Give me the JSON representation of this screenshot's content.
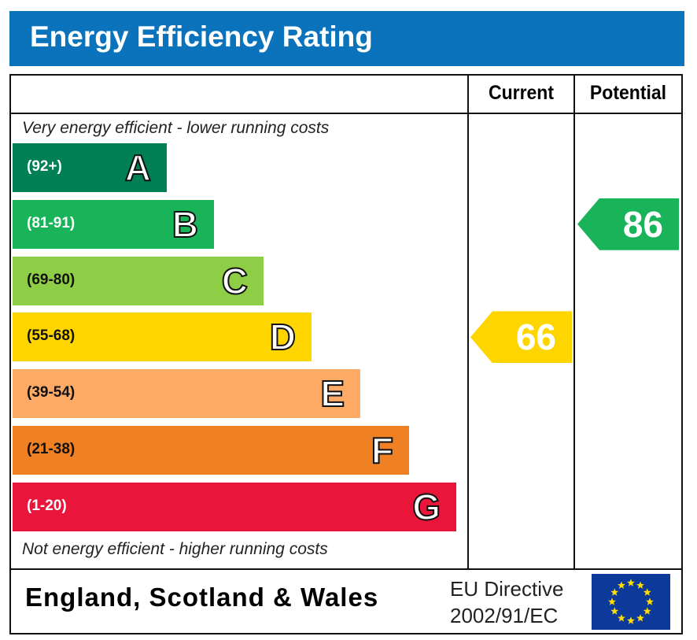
{
  "title": "Energy Efficiency Rating",
  "columns": {
    "current": "Current",
    "potential": "Potential"
  },
  "notes": {
    "top": "Very energy efficient - lower running costs",
    "bottom": "Not energy efficient - higher running costs"
  },
  "footer": {
    "region": "England, Scotland & Wales",
    "directive_line1": "EU Directive",
    "directive_line2": "2002/91/EC",
    "flag_icon": "eu-flag-icon"
  },
  "chart_data": {
    "type": "bar",
    "bands": [
      {
        "letter": "A",
        "range": "(92+)",
        "min": 92,
        "max": 100,
        "color": "#008054"
      },
      {
        "letter": "B",
        "range": "(81-91)",
        "min": 81,
        "max": 91,
        "color": "#19b459"
      },
      {
        "letter": "C",
        "range": "(69-80)",
        "min": 69,
        "max": 80,
        "color": "#8dce46"
      },
      {
        "letter": "D",
        "range": "(55-68)",
        "min": 55,
        "max": 68,
        "color": "#ffd500"
      },
      {
        "letter": "E",
        "range": "(39-54)",
        "min": 39,
        "max": 54,
        "color": "#fcaa65"
      },
      {
        "letter": "F",
        "range": "(21-38)",
        "min": 21,
        "max": 38,
        "color": "#ef8023"
      },
      {
        "letter": "G",
        "range": "(1-20)",
        "min": 1,
        "max": 20,
        "color": "#e9153b"
      }
    ],
    "current": {
      "value": 66,
      "band": "D",
      "color": "#ffd500"
    },
    "potential": {
      "value": 86,
      "band": "B",
      "color": "#19b459"
    }
  }
}
